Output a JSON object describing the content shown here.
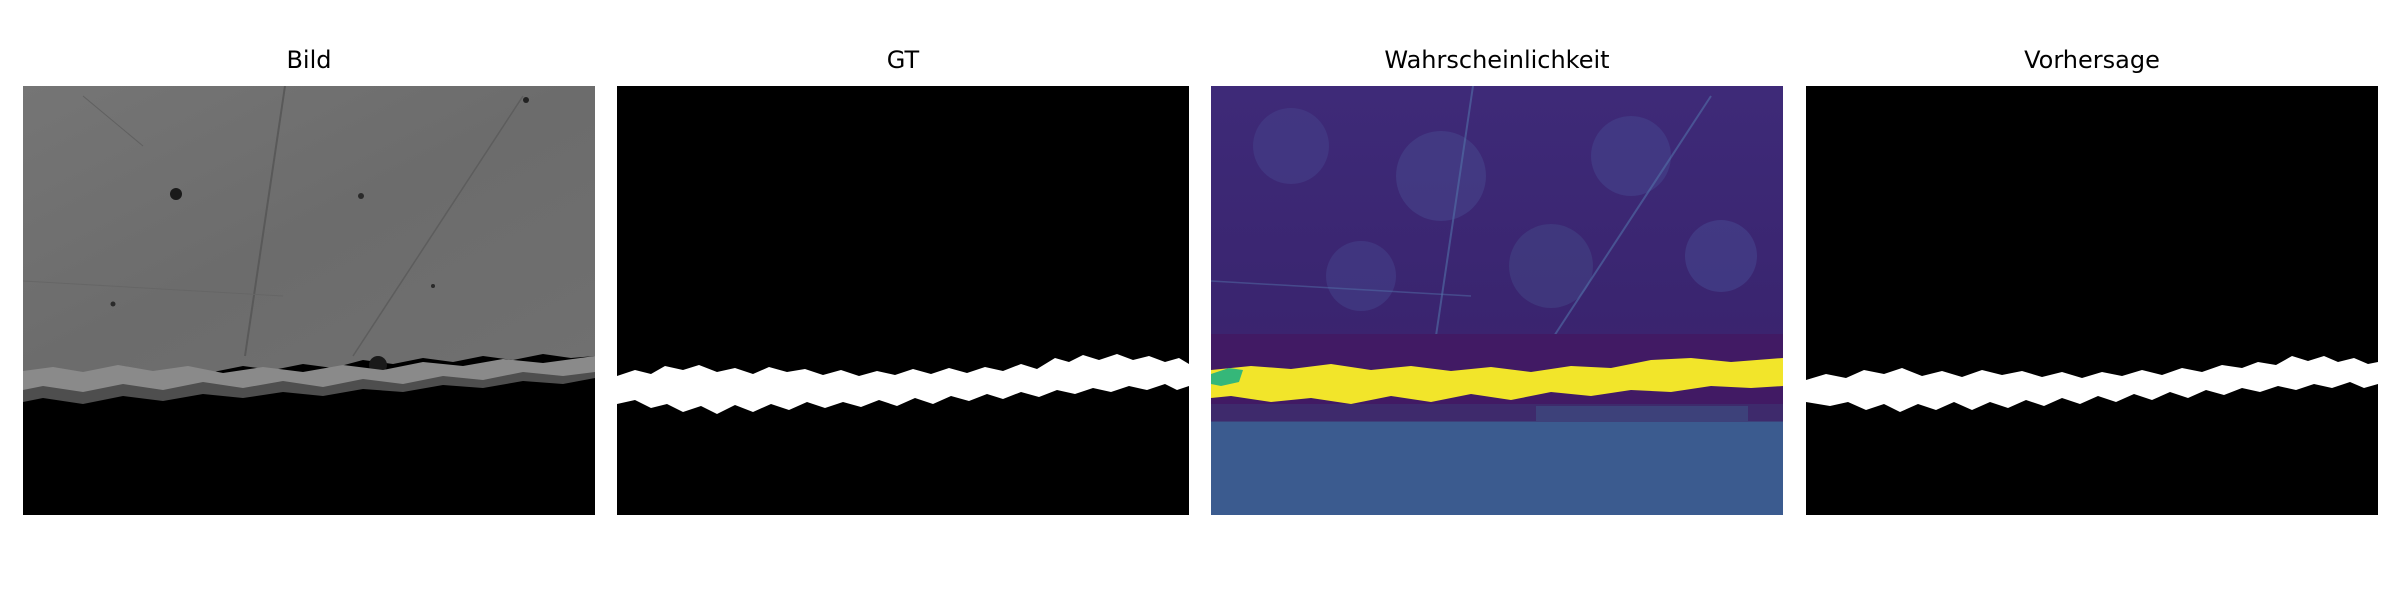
{
  "figure": {
    "panels": [
      {
        "title": "Bild"
      },
      {
        "title": "GT"
      },
      {
        "title": "Wahrscheinlichkeit"
      },
      {
        "title": "Vorhersage"
      }
    ]
  },
  "colors": {
    "background": "#ffffff",
    "mask_black": "#000000",
    "mask_white": "#ffffff",
    "micrograph_gray": "#6f6f6f",
    "prob_low": "#3d1a6b",
    "prob_mid": "#3b5b8f",
    "prob_high": "#f2e52a"
  }
}
